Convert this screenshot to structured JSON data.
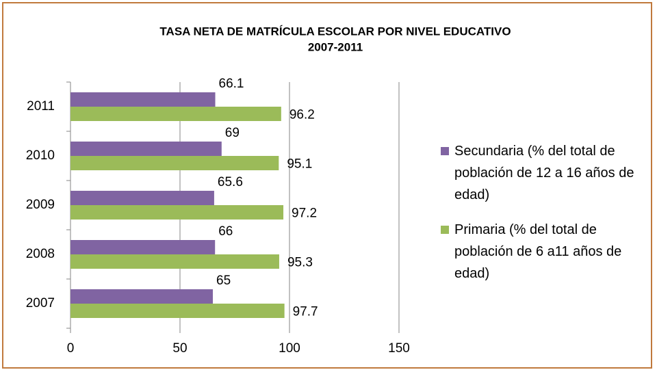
{
  "chart_data": {
    "type": "barh",
    "title_lines": [
      "TASA NETA DE MATRÍCULA ESCOLAR POR NIVEL EDUCATIVO",
      "2007-2011"
    ],
    "categories": [
      "2007",
      "2008",
      "2009",
      "2010",
      "2011"
    ],
    "series": [
      {
        "name": "Secundaria (% del total de población de 12 a 16 años de edad)",
        "color": "#8064a2",
        "values": [
          65,
          66,
          65.6,
          69,
          66.1
        ]
      },
      {
        "name": "Primaria (% del total de población de 6 a11 años de edad)",
        "color": "#9bbb59",
        "values": [
          97.7,
          95.3,
          97.2,
          95.1,
          96.2
        ]
      }
    ],
    "xlim": [
      0,
      150
    ],
    "xticks": [
      0,
      50,
      100,
      150
    ],
    "grid": true,
    "legend": "right"
  }
}
